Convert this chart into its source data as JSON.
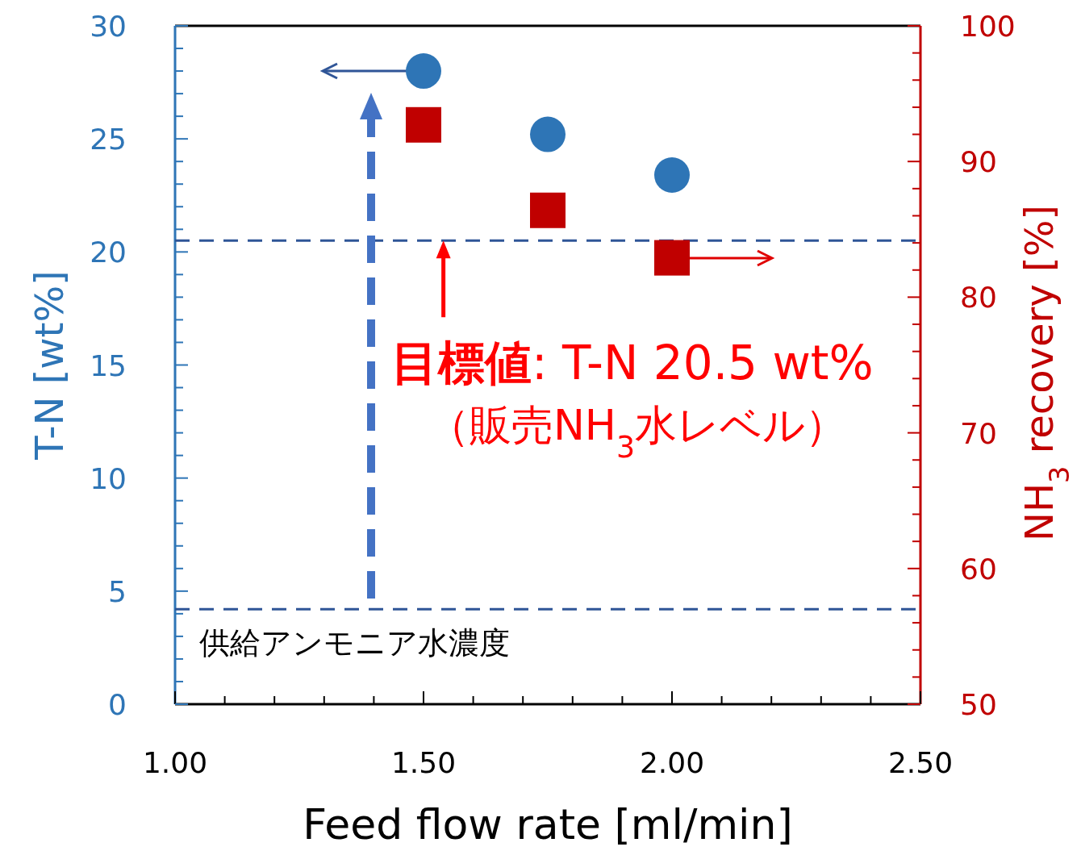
{
  "chart_data": {
    "type": "scatter",
    "xlabel": "Feed flow rate [ml/min]",
    "ylabel": "T-N [wt%]",
    "y2label": "NH$_{3}$ recovery [%]",
    "xlim": [
      1,
      2.5
    ],
    "xticks": [
      {
        "value": 1,
        "label": "1.00"
      },
      {
        "value": 1.1,
        "label": null
      },
      {
        "value": 1.2,
        "label": null
      },
      {
        "value": 1.3,
        "label": null
      },
      {
        "value": 1.4,
        "label": null
      },
      {
        "value": 1.5,
        "label": "1.50"
      },
      {
        "value": 1.6,
        "label": null
      },
      {
        "value": 1.7,
        "label": null
      },
      {
        "value": 1.8,
        "label": null
      },
      {
        "value": 1.9,
        "label": null
      },
      {
        "value": 2,
        "label": "2.00"
      },
      {
        "value": 2.1,
        "label": null
      },
      {
        "value": 2.2,
        "label": null
      },
      {
        "value": 2.3,
        "label": null
      },
      {
        "value": 2.4,
        "label": null
      },
      {
        "value": 2.5,
        "label": "2.50"
      }
    ],
    "ylim": [
      0,
      30
    ],
    "yticks": [
      0,
      {
        "value": 1,
        "label": null
      },
      {
        "value": 2,
        "label": null
      },
      {
        "value": 3,
        "label": null
      },
      {
        "value": 4,
        "label": null
      },
      5,
      {
        "value": 6,
        "label": null
      },
      {
        "value": 7,
        "label": null
      },
      {
        "value": 8,
        "label": null
      },
      {
        "value": 9,
        "label": null
      },
      10,
      {
        "value": 11,
        "label": null
      },
      {
        "value": 12,
        "label": null
      },
      {
        "value": 13,
        "label": null
      },
      {
        "value": 14,
        "label": null
      },
      15,
      {
        "value": 16,
        "label": null
      },
      {
        "value": 17,
        "label": null
      },
      {
        "value": 18,
        "label": null
      },
      {
        "value": 19,
        "label": null
      },
      20,
      {
        "value": 21,
        "label": null
      },
      {
        "value": 22,
        "label": null
      },
      {
        "value": 23,
        "label": null
      },
      {
        "value": 24,
        "label": null
      },
      25,
      {
        "value": 26,
        "label": null
      },
      {
        "value": 27,
        "label": null
      },
      {
        "value": 28,
        "label": null
      },
      {
        "value": 29,
        "label": null
      },
      30
    ],
    "y2lim": [
      50,
      100
    ],
    "y2ticks": [
      50,
      {
        "value": 52,
        "label": null
      },
      {
        "value": 54,
        "label": null
      },
      {
        "value": 56,
        "label": null
      },
      {
        "value": 58,
        "label": null
      },
      60,
      {
        "value": 62,
        "label": null
      },
      {
        "value": 64,
        "label": null
      },
      {
        "value": 66,
        "label": null
      },
      {
        "value": 68,
        "label": null
      },
      70,
      {
        "value": 72,
        "label": null
      },
      {
        "value": 74,
        "label": null
      },
      {
        "value": 76,
        "label": null
      },
      {
        "value": 78,
        "label": null
      },
      80,
      {
        "value": 82,
        "label": null
      },
      {
        "value": 84,
        "label": null
      },
      {
        "value": 86,
        "label": null
      },
      {
        "value": 88,
        "label": null
      },
      90,
      {
        "value": 92,
        "label": null
      },
      {
        "value": 94,
        "label": null
      },
      {
        "value": 96,
        "label": null
      },
      {
        "value": 98,
        "label": null
      },
      100
    ],
    "series": [
      {
        "x": [
          1.5,
          1.75,
          2.0
        ],
        "values": [
          28.0,
          25.2,
          23.4
        ],
        "color": "#2e75b6",
        "marker": "circle"
      },
      {
        "x": [
          1.5,
          1.75,
          2.0
        ],
        "values": [
          92.7,
          86.4,
          82.9
        ],
        "color": "#c00000",
        "marker": "square",
        "axis": "y2"
      }
    ],
    "ref_lines": [
      {
        "axis": "y",
        "value": 20.5,
        "color": "#2f5597",
        "line_style": "dashed"
      },
      {
        "axis": "y",
        "value": 4.2,
        "color": "#2f5597",
        "line_style": "dashed",
        "label": "供給アンモニア水濃度"
      }
    ],
    "annotations": [
      {
        "text": "目標値",
        "x": 1.54,
        "y": 20.5
      },
      ": T-N 20.5 wt%",
      "（販売NH$_{3}$水レベル）"
    ],
    "grid": false
  }
}
